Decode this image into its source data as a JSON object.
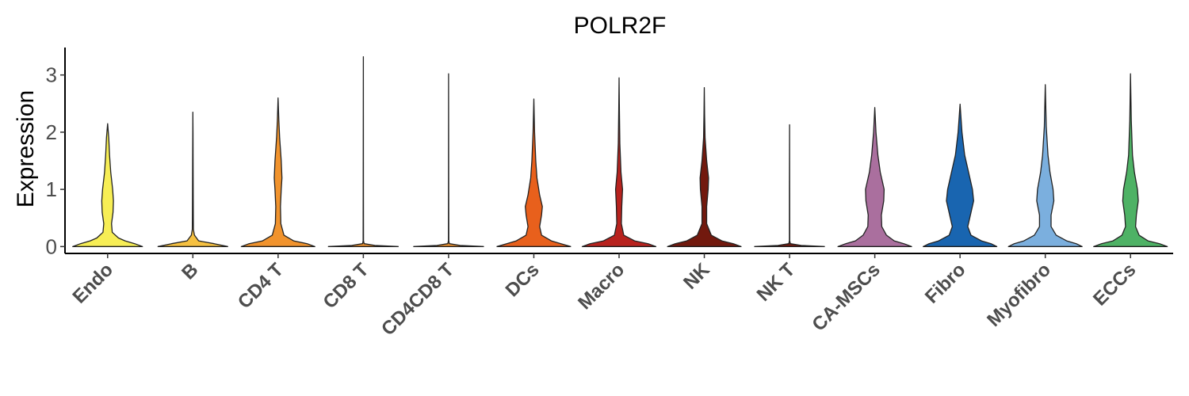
{
  "chart_data": {
    "type": "violin",
    "title": "POLR2F",
    "xlabel": "",
    "ylabel": "Expression",
    "ylim": [
      -0.12,
      3.48
    ],
    "yticks": [
      "0",
      "1",
      "2",
      "3"
    ],
    "grid": false,
    "legend": "none",
    "categories": [
      "Endo",
      "B",
      "CD4 T",
      "CD8 T",
      "CD4CD8 T",
      "DCs",
      "Macro",
      "NK",
      "NK T",
      "CA-MSCs",
      "Fibro",
      "Myofibro",
      "ECCs"
    ],
    "colors": [
      "#F7EE55",
      "#F6C141",
      "#F1932D",
      "#F1932D",
      "#F1932D",
      "#E8601C",
      "#B8221E",
      "#72190E",
      "#72190E",
      "#AA6F9E",
      "#1965B0",
      "#7BAFDE",
      "#4EB265"
    ],
    "max_values": [
      2.15,
      2.35,
      2.6,
      3.32,
      3.02,
      2.58,
      2.95,
      2.78,
      2.13,
      2.43,
      2.49,
      2.83,
      3.02
    ],
    "density": [
      [
        [
          0,
          0.9
        ],
        [
          0.05,
          0.7
        ],
        [
          0.1,
          0.45
        ],
        [
          0.15,
          0.28
        ],
        [
          0.25,
          0.12
        ],
        [
          0.4,
          0.1
        ],
        [
          0.6,
          0.14
        ],
        [
          0.8,
          0.15
        ],
        [
          1.0,
          0.13
        ],
        [
          1.3,
          0.08
        ],
        [
          1.6,
          0.05
        ],
        [
          1.9,
          0.03
        ],
        [
          2.15,
          0
        ]
      ],
      [
        [
          0,
          0.9
        ],
        [
          0.05,
          0.55
        ],
        [
          0.1,
          0.15
        ],
        [
          0.2,
          0.04
        ],
        [
          0.3,
          0.015
        ],
        [
          0.5,
          0.012
        ],
        [
          0.8,
          0.01
        ],
        [
          1.5,
          0.006
        ],
        [
          2.0,
          0.003
        ],
        [
          2.35,
          0
        ]
      ],
      [
        [
          0,
          0.95
        ],
        [
          0.05,
          0.75
        ],
        [
          0.1,
          0.4
        ],
        [
          0.2,
          0.15
        ],
        [
          0.4,
          0.07
        ],
        [
          0.7,
          0.06
        ],
        [
          1.0,
          0.08
        ],
        [
          1.2,
          0.1
        ],
        [
          1.5,
          0.08
        ],
        [
          1.9,
          0.04
        ],
        [
          2.2,
          0.02
        ],
        [
          2.6,
          0
        ]
      ],
      [
        [
          0,
          0.9
        ],
        [
          0.02,
          0.3
        ],
        [
          0.05,
          0.02
        ],
        [
          0.1,
          0.005
        ],
        [
          1.0,
          0.003
        ],
        [
          3.32,
          0
        ]
      ],
      [
        [
          0,
          0.9
        ],
        [
          0.02,
          0.3
        ],
        [
          0.05,
          0.02
        ],
        [
          0.1,
          0.005
        ],
        [
          1.0,
          0.003
        ],
        [
          3.02,
          0
        ]
      ],
      [
        [
          0,
          0.95
        ],
        [
          0.05,
          0.7
        ],
        [
          0.1,
          0.45
        ],
        [
          0.2,
          0.2
        ],
        [
          0.35,
          0.15
        ],
        [
          0.55,
          0.2
        ],
        [
          0.7,
          0.22
        ],
        [
          0.9,
          0.15
        ],
        [
          1.2,
          0.08
        ],
        [
          1.5,
          0.05
        ],
        [
          2.0,
          0.02
        ],
        [
          2.58,
          0
        ]
      ],
      [
        [
          0,
          0.95
        ],
        [
          0.05,
          0.75
        ],
        [
          0.1,
          0.4
        ],
        [
          0.2,
          0.12
        ],
        [
          0.4,
          0.06
        ],
        [
          0.7,
          0.07
        ],
        [
          1.0,
          0.09
        ],
        [
          1.3,
          0.05
        ],
        [
          1.8,
          0.02
        ],
        [
          2.4,
          0.008
        ],
        [
          2.95,
          0
        ]
      ],
      [
        [
          0,
          0.95
        ],
        [
          0.05,
          0.75
        ],
        [
          0.1,
          0.45
        ],
        [
          0.2,
          0.18
        ],
        [
          0.4,
          0.06
        ],
        [
          0.7,
          0.06
        ],
        [
          1.0,
          0.1
        ],
        [
          1.2,
          0.11
        ],
        [
          1.5,
          0.06
        ],
        [
          1.9,
          0.02
        ],
        [
          2.3,
          0.008
        ],
        [
          2.78,
          0
        ]
      ],
      [
        [
          0,
          0.9
        ],
        [
          0.02,
          0.3
        ],
        [
          0.05,
          0.02
        ],
        [
          0.1,
          0.004
        ],
        [
          1.0,
          0.003
        ],
        [
          2.13,
          0
        ]
      ],
      [
        [
          0,
          0.95
        ],
        [
          0.05,
          0.75
        ],
        [
          0.1,
          0.5
        ],
        [
          0.2,
          0.3
        ],
        [
          0.35,
          0.18
        ],
        [
          0.55,
          0.17
        ],
        [
          0.8,
          0.23
        ],
        [
          1.0,
          0.24
        ],
        [
          1.3,
          0.14
        ],
        [
          1.6,
          0.08
        ],
        [
          2.0,
          0.03
        ],
        [
          2.43,
          0
        ]
      ],
      [
        [
          0,
          0.95
        ],
        [
          0.05,
          0.8
        ],
        [
          0.1,
          0.55
        ],
        [
          0.2,
          0.28
        ],
        [
          0.35,
          0.2
        ],
        [
          0.5,
          0.25
        ],
        [
          0.8,
          0.35
        ],
        [
          1.0,
          0.32
        ],
        [
          1.3,
          0.22
        ],
        [
          1.6,
          0.12
        ],
        [
          2.0,
          0.05
        ],
        [
          2.49,
          0
        ]
      ],
      [
        [
          0,
          0.95
        ],
        [
          0.05,
          0.8
        ],
        [
          0.1,
          0.55
        ],
        [
          0.2,
          0.28
        ],
        [
          0.35,
          0.15
        ],
        [
          0.55,
          0.15
        ],
        [
          0.8,
          0.22
        ],
        [
          1.0,
          0.2
        ],
        [
          1.3,
          0.12
        ],
        [
          1.6,
          0.07
        ],
        [
          2.1,
          0.025
        ],
        [
          2.83,
          0
        ]
      ],
      [
        [
          0,
          0.95
        ],
        [
          0.05,
          0.75
        ],
        [
          0.1,
          0.45
        ],
        [
          0.2,
          0.22
        ],
        [
          0.35,
          0.13
        ],
        [
          0.55,
          0.15
        ],
        [
          0.8,
          0.2
        ],
        [
          1.0,
          0.18
        ],
        [
          1.3,
          0.1
        ],
        [
          1.6,
          0.05
        ],
        [
          2.2,
          0.02
        ],
        [
          3.02,
          0
        ]
      ]
    ]
  }
}
